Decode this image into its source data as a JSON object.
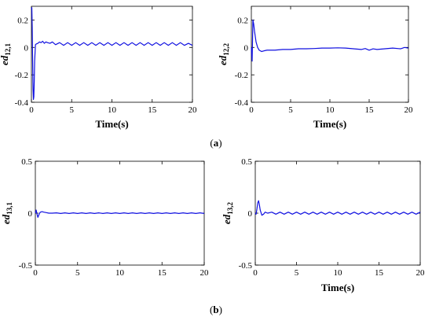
{
  "figure": {
    "panel_labels": [
      {
        "open": "(",
        "letter": "a",
        "close": ")"
      },
      {
        "open": "(",
        "letter": "b",
        "close": ")"
      }
    ]
  },
  "chart_data": [
    {
      "type": "line",
      "ylabel_main": "ed",
      "ylabel_sub": "12,1",
      "xlabel": "Time(s)",
      "xlim": [
        0,
        20
      ],
      "ylim": [
        -0.4,
        0.3
      ],
      "xticks": [
        0,
        5,
        10,
        15,
        20
      ],
      "yticks": [
        -0.4,
        -0.2,
        0,
        0.2
      ],
      "ytick_labels": [
        "-0.4",
        "-0.2",
        "0",
        "0.2"
      ],
      "grid": false,
      "color": "#1010e0",
      "x": [
        0,
        0.05,
        0.1,
        0.15,
        0.2,
        0.25,
        0.3,
        0.35,
        0.4,
        0.5,
        0.6,
        0.8,
        1.0,
        1.2,
        1.4,
        1.6,
        1.8,
        2.0,
        2.3,
        2.6,
        3.0,
        3.5,
        4.0,
        4.5,
        5.0,
        5.5,
        6.0,
        6.5,
        7.0,
        7.5,
        8.0,
        8.5,
        9.0,
        9.5,
        10.0,
        10.5,
        11.0,
        11.5,
        12.0,
        12.5,
        13.0,
        13.5,
        14.0,
        14.5,
        15.0,
        15.5,
        16.0,
        16.5,
        17.0,
        17.5,
        18.0,
        18.5,
        19.0,
        19.5,
        20.0
      ],
      "y": [
        0.28,
        0.29,
        0.15,
        -0.1,
        -0.3,
        -0.38,
        -0.36,
        -0.25,
        -0.1,
        0.02,
        0.025,
        0.03,
        0.04,
        0.035,
        0.045,
        0.03,
        0.04,
        0.035,
        0.03,
        0.04,
        0.02,
        0.035,
        0.015,
        0.035,
        0.015,
        0.035,
        0.015,
        0.035,
        0.015,
        0.035,
        0.015,
        0.035,
        0.015,
        0.035,
        0.015,
        0.035,
        0.015,
        0.035,
        0.015,
        0.035,
        0.015,
        0.035,
        0.015,
        0.035,
        0.015,
        0.035,
        0.015,
        0.035,
        0.015,
        0.035,
        0.015,
        0.035,
        0.015,
        0.03,
        0.015
      ]
    },
    {
      "type": "line",
      "ylabel_main": "ed",
      "ylabel_sub": "12,2",
      "xlabel": "Time(s)",
      "xlim": [
        0,
        20
      ],
      "ylim": [
        -0.4,
        0.3
      ],
      "xticks": [
        0,
        5,
        10,
        15,
        20
      ],
      "yticks": [
        -0.4,
        -0.2,
        0,
        0.2
      ],
      "ytick_labels": [
        "-0.4",
        "-0.2",
        "0",
        "0.2"
      ],
      "grid": false,
      "color": "#1010e0",
      "x": [
        0,
        0.05,
        0.1,
        0.15,
        0.2,
        0.3,
        0.4,
        0.5,
        0.6,
        0.8,
        1.0,
        1.3,
        1.6,
        2.0,
        2.5,
        3.0,
        4.0,
        5.0,
        6.0,
        7.0,
        8.0,
        9.0,
        10.0,
        11.0,
        12.0,
        13.0,
        14.0,
        14.5,
        15.0,
        15.5,
        16.0,
        17.0,
        18.0,
        19.0,
        19.5,
        20.0
      ],
      "y": [
        0.0,
        -0.06,
        -0.1,
        0.05,
        0.2,
        0.17,
        0.12,
        0.08,
        0.04,
        0.0,
        -0.02,
        -0.03,
        -0.025,
        -0.02,
        -0.02,
        -0.02,
        -0.015,
        -0.015,
        -0.01,
        -0.01,
        -0.008,
        -0.005,
        -0.005,
        -0.003,
        -0.005,
        -0.01,
        -0.015,
        -0.008,
        -0.02,
        -0.01,
        -0.015,
        -0.01,
        -0.005,
        -0.01,
        0.0,
        -0.005
      ]
    },
    {
      "type": "line",
      "ylabel_main": "ed",
      "ylabel_sub": "13,1",
      "xlabel": "",
      "xlim": [
        0,
        20
      ],
      "ylim": [
        -0.5,
        0.5
      ],
      "xticks": [
        0,
        5,
        10,
        15,
        20
      ],
      "yticks": [
        -0.5,
        0,
        0.5
      ],
      "ytick_labels": [
        "-0.5",
        "0",
        "0.5"
      ],
      "grid": false,
      "color": "#1010e0",
      "x": [
        0,
        0.1,
        0.2,
        0.3,
        0.4,
        0.5,
        0.6,
        0.8,
        1.0,
        1.3,
        1.6,
        2.0,
        2.5,
        3.0,
        3.5,
        4.0,
        4.5,
        5.0,
        5.5,
        6.0,
        6.5,
        7.0,
        7.5,
        8.0,
        8.5,
        9.0,
        9.5,
        10.0,
        10.5,
        11.0,
        11.5,
        12.0,
        12.5,
        13.0,
        13.5,
        14.0,
        14.5,
        15.0,
        15.5,
        16.0,
        16.5,
        17.0,
        17.5,
        18.0,
        18.5,
        19.0,
        19.5,
        20.0
      ],
      "y": [
        0.0,
        0.03,
        -0.01,
        -0.04,
        -0.02,
        0.0,
        0.01,
        0.015,
        0.01,
        0.005,
        0.0,
        0.0,
        0.003,
        -0.003,
        0.003,
        -0.003,
        0.003,
        -0.003,
        0.003,
        -0.003,
        0.003,
        -0.003,
        0.003,
        -0.003,
        0.003,
        -0.003,
        0.003,
        -0.003,
        0.003,
        -0.003,
        0.003,
        -0.003,
        0.003,
        -0.003,
        0.003,
        -0.003,
        0.003,
        -0.003,
        0.003,
        -0.003,
        0.003,
        -0.003,
        0.003,
        -0.003,
        0.003,
        -0.003,
        0.003,
        -0.003
      ]
    },
    {
      "type": "line",
      "ylabel_main": "ed",
      "ylabel_sub": "13,2",
      "xlabel": "Time(s)",
      "xlim": [
        0,
        20
      ],
      "ylim": [
        -0.5,
        0.5
      ],
      "xticks": [
        0,
        5,
        10,
        15,
        20
      ],
      "yticks": [
        -0.5,
        0,
        0.5
      ],
      "ytick_labels": [
        "-0.5",
        "0",
        "0.5"
      ],
      "grid": false,
      "color": "#1010e0",
      "x": [
        0,
        0.1,
        0.2,
        0.3,
        0.4,
        0.5,
        0.6,
        0.8,
        1.0,
        1.2,
        1.5,
        2.0,
        2.5,
        3.0,
        3.5,
        4.0,
        4.5,
        5.0,
        5.5,
        6.0,
        6.5,
        7.0,
        7.5,
        8.0,
        8.5,
        9.0,
        9.5,
        10.0,
        10.5,
        11.0,
        11.5,
        12.0,
        12.5,
        13.0,
        13.5,
        14.0,
        14.5,
        15.0,
        15.5,
        16.0,
        16.5,
        17.0,
        17.5,
        18.0,
        18.5,
        19.0,
        19.5,
        20.0
      ],
      "y": [
        0.0,
        -0.01,
        0.04,
        0.1,
        0.12,
        0.08,
        0.03,
        -0.02,
        -0.01,
        0.01,
        0.0,
        0.01,
        -0.01,
        0.01,
        -0.01,
        0.01,
        -0.01,
        0.01,
        -0.01,
        0.01,
        -0.01,
        0.01,
        -0.01,
        0.01,
        -0.01,
        0.01,
        -0.01,
        0.01,
        -0.01,
        0.01,
        -0.01,
        0.01,
        -0.01,
        0.01,
        -0.01,
        0.01,
        -0.01,
        0.01,
        -0.01,
        0.01,
        -0.01,
        0.01,
        -0.01,
        0.01,
        -0.01,
        0.01,
        -0.01,
        0.01
      ]
    }
  ]
}
